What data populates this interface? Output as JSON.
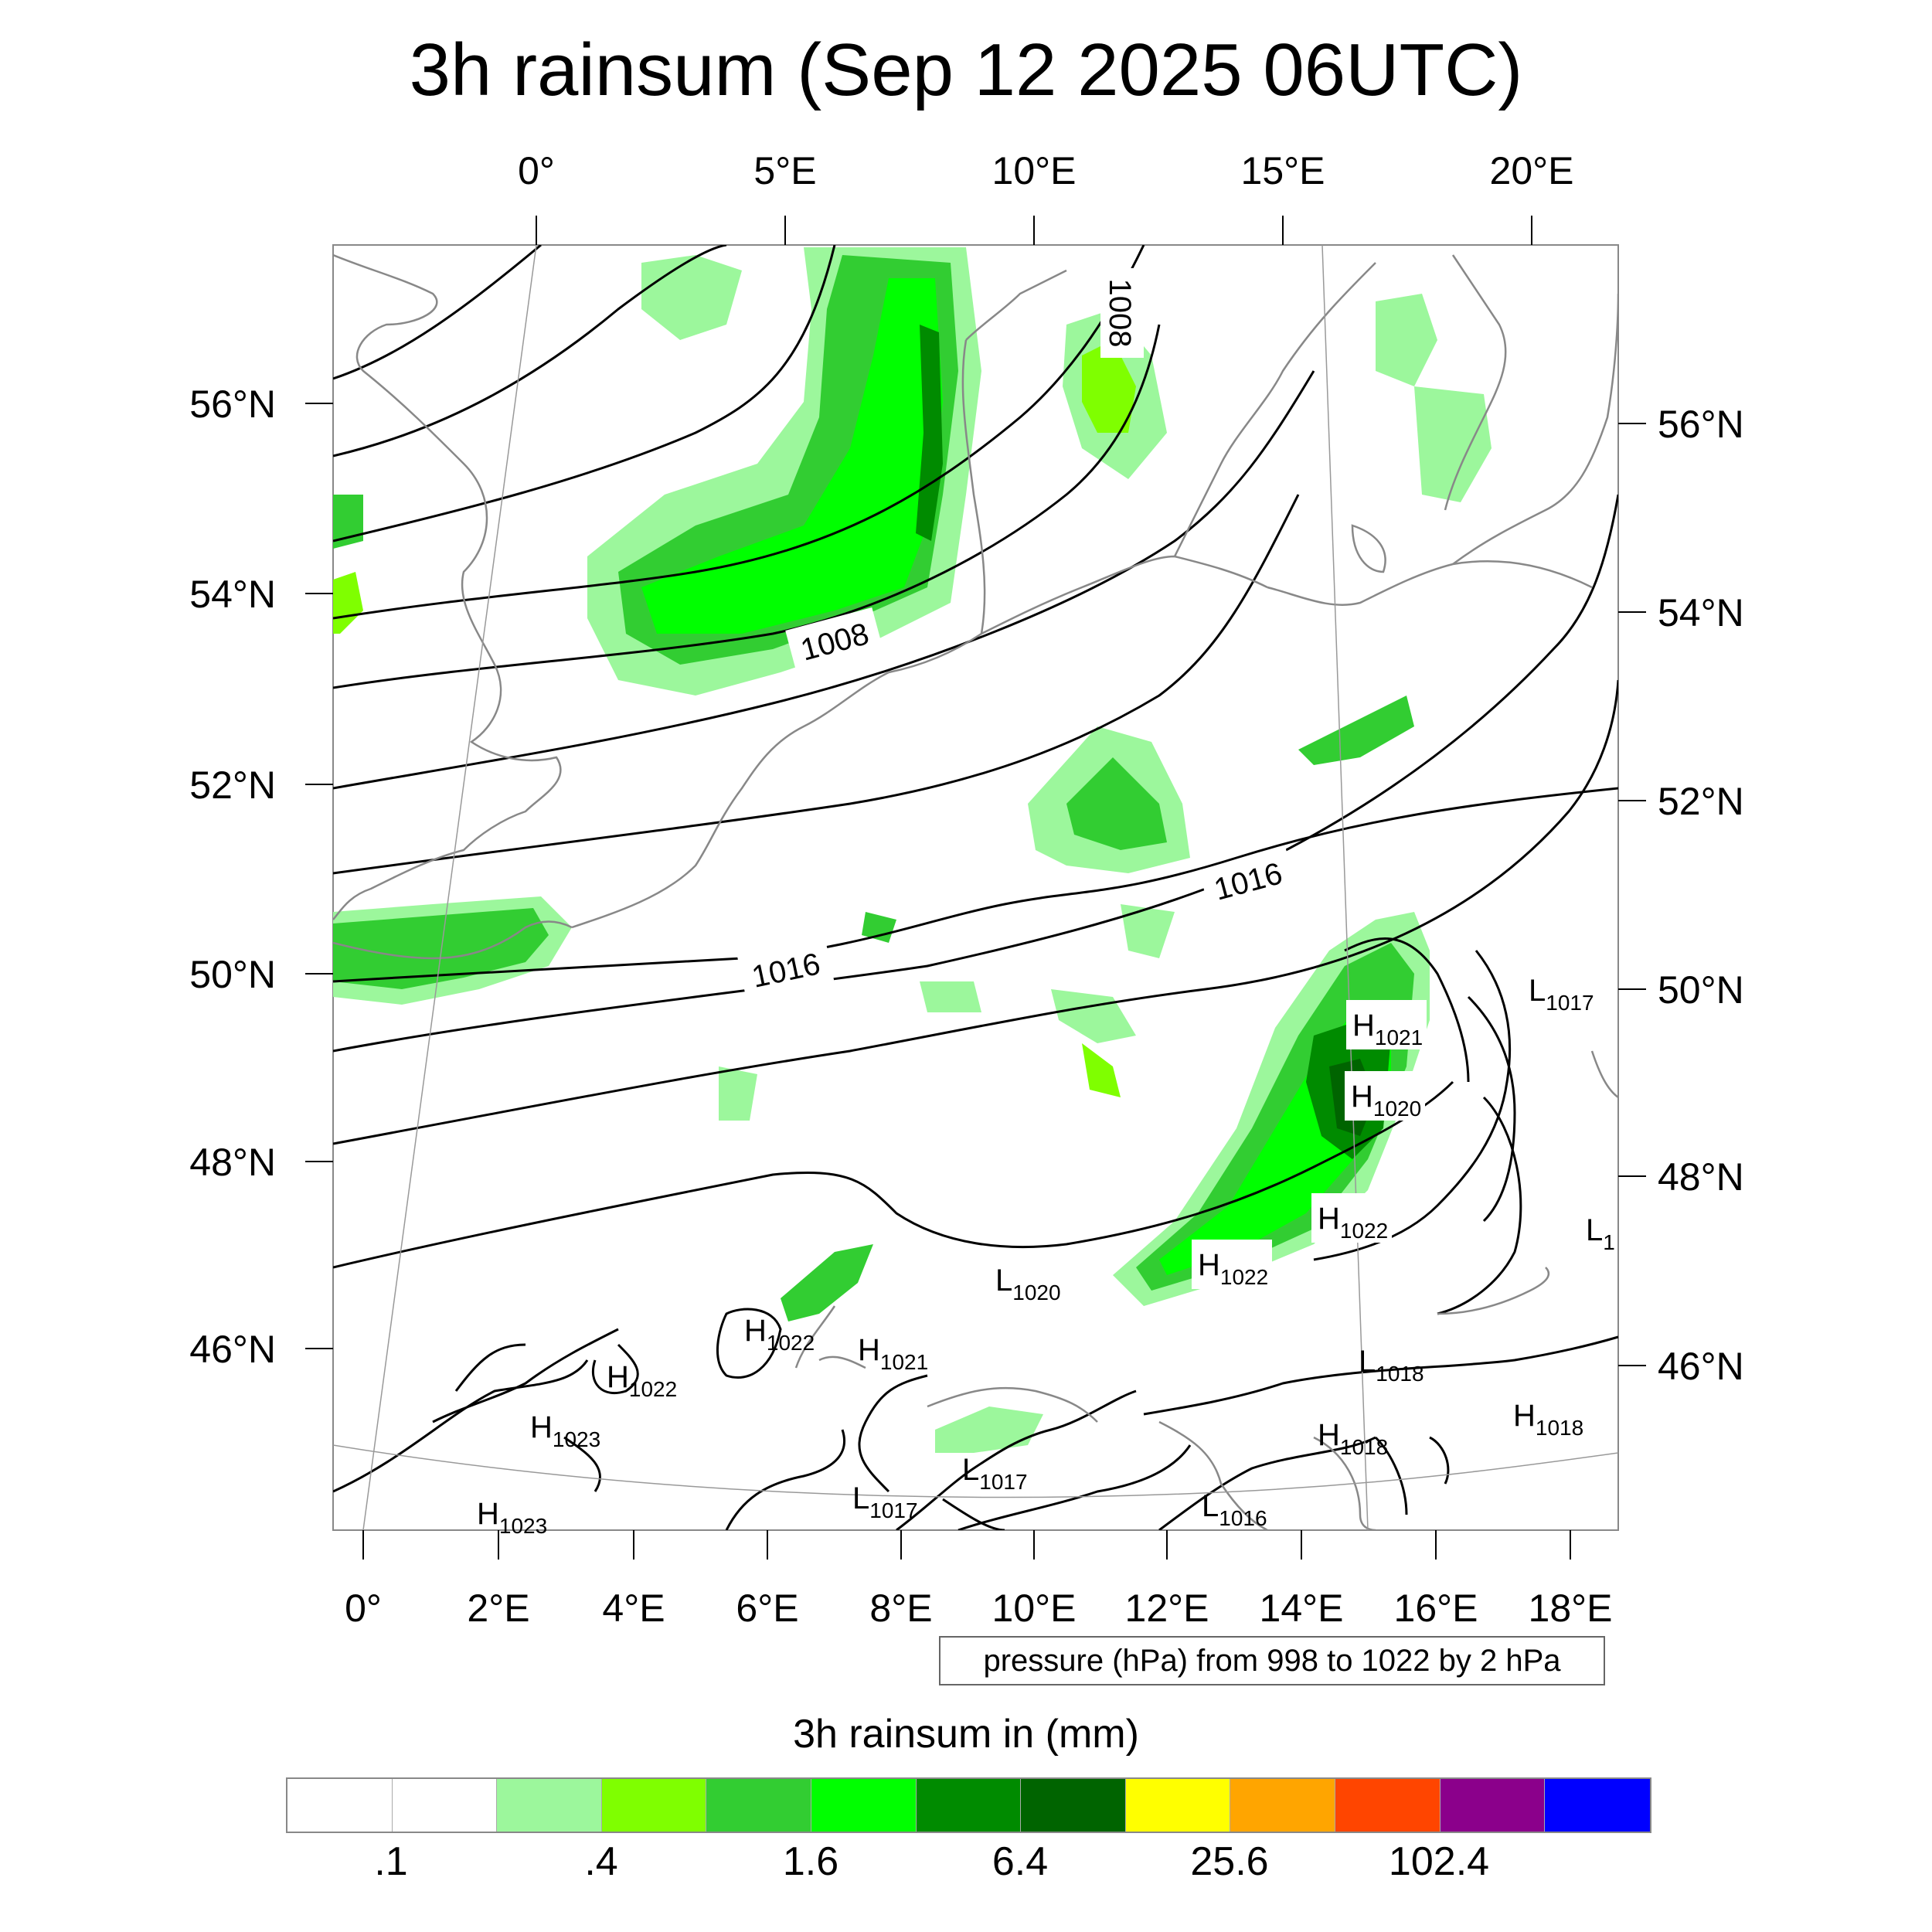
{
  "title": "3h rainsum (Sep 12 2025 06UTC)",
  "top_lon_labels": [
    "0°",
    "5°E",
    "10°E",
    "15°E",
    "20°E"
  ],
  "bottom_lon_labels": [
    "0°",
    "2°E",
    "4°E",
    "6°E",
    "8°E",
    "10°E",
    "12°E",
    "14°E",
    "16°E",
    "18°E"
  ],
  "left_lat_labels": [
    "56°N",
    "54°N",
    "52°N",
    "50°N",
    "48°N",
    "46°N"
  ],
  "right_lat_labels": [
    "56°N",
    "54°N",
    "52°N",
    "50°N",
    "48°N",
    "46°N"
  ],
  "contour_labels": [
    "1008",
    "1008",
    "1016",
    "1016"
  ],
  "pressure_centers": [
    {
      "type": "H",
      "value": "1021"
    },
    {
      "type": "H",
      "value": "1020"
    },
    {
      "type": "H",
      "value": "1022"
    },
    {
      "type": "H",
      "value": "1022"
    },
    {
      "type": "H",
      "value": "1022"
    },
    {
      "type": "H",
      "value": "1022"
    },
    {
      "type": "H",
      "value": "1021"
    },
    {
      "type": "H",
      "value": "1023"
    },
    {
      "type": "H",
      "value": "1023"
    },
    {
      "type": "H",
      "value": "1018"
    },
    {
      "type": "H",
      "value": "1018"
    },
    {
      "type": "L",
      "value": "1017"
    },
    {
      "type": "L",
      "value": "1"
    },
    {
      "type": "L",
      "value": "1020"
    },
    {
      "type": "L",
      "value": "1018"
    },
    {
      "type": "L",
      "value": "1017"
    },
    {
      "type": "L",
      "value": "1017"
    },
    {
      "type": "L",
      "value": "1016"
    }
  ],
  "pressure_note": "pressure (hPa) from 998 to 1022 by 2 hPa",
  "colorbar": {
    "title": "3h rainsum in (mm)",
    "colors": [
      "#ffffff",
      "#ffffff",
      "#9cf79c",
      "#7fff00",
      "#32cd32",
      "#00ff00",
      "#008b00",
      "#006400",
      "#ffff00",
      "#ffa500",
      "#ff4500",
      "#8b008b",
      "#0000ff"
    ],
    "labels": [
      ".1",
      ".4",
      "1.6",
      "6.4",
      "25.6",
      "102.4"
    ]
  }
}
